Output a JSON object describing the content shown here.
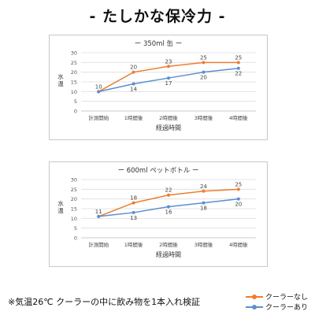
{
  "page": {
    "title": "- たしかな保冷力 -",
    "footnote": "※気温26℃ クーラーの中に飲み物を1本入れ検証"
  },
  "legend": [
    {
      "label": "クーラーなし",
      "color": "#ed7d31"
    },
    {
      "label": "クーラーあり",
      "color": "#5b8fd0"
    }
  ],
  "chart_data": [
    {
      "type": "line",
      "title": "ー 350ml 缶 ー",
      "xlabel": "経過時間",
      "ylabel": "水温",
      "categories": [
        "計測開始",
        "1時間後",
        "2時間後",
        "3時間後",
        "4時間後"
      ],
      "ylim": [
        0,
        30
      ],
      "yticks": [
        0,
        5,
        10,
        15,
        20,
        25,
        30
      ],
      "grid": true,
      "series": [
        {
          "name": "クーラーなし",
          "color": "#ed7d31",
          "values": [
            10,
            20,
            23,
            25,
            25
          ]
        },
        {
          "name": "クーラーあり",
          "color": "#5b8fd0",
          "values": [
            10,
            14,
            17,
            20,
            22
          ]
        }
      ]
    },
    {
      "type": "line",
      "title": "ー 600ml ペットボトル ー",
      "xlabel": "経過時間",
      "ylabel": "水温",
      "categories": [
        "計測開始",
        "1時間後",
        "2時間後",
        "3時間後",
        "4時間後"
      ],
      "ylim": [
        0,
        30
      ],
      "yticks": [
        0,
        5,
        10,
        15,
        20,
        25,
        30
      ],
      "grid": true,
      "series": [
        {
          "name": "クーラーなし",
          "color": "#ed7d31",
          "values": [
            11,
            18,
            22,
            24,
            25
          ]
        },
        {
          "name": "クーラーあり",
          "color": "#5b8fd0",
          "values": [
            11,
            13,
            16,
            18,
            20
          ]
        }
      ]
    }
  ]
}
